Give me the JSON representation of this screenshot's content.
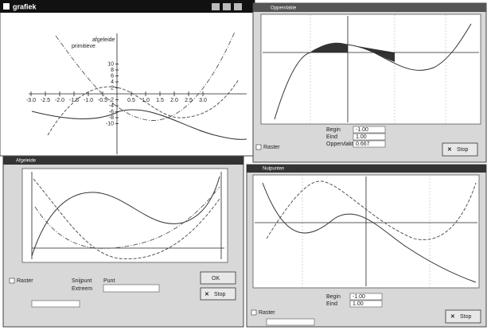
{
  "main_window": {
    "title": "grafiek",
    "legend": [
      "afgeleide",
      "primitieve"
    ],
    "x_labels": [
      "-3.0",
      "-2.5",
      "-2.0",
      "-1.5",
      "-1.0",
      "-0.5",
      "0.5",
      "1.0",
      "1.5",
      "2.0",
      "2.5",
      "3.0"
    ],
    "y_labels": [
      "10",
      "8",
      "6",
      "4",
      "2",
      "-2",
      "-4",
      "-6",
      "-8",
      "-10"
    ]
  },
  "area_window": {
    "title": "Oppervlakte",
    "fields": [
      "Begin",
      "Eind",
      "Oppervlakte"
    ],
    "values": [
      "-1.00",
      "1.00",
      "0.667"
    ],
    "checkbox": "Raster",
    "stop_button": "Stop"
  },
  "derivative_window": {
    "title": "Afgeleide",
    "checkbox": "Raster",
    "labels": [
      "Snijpunt",
      "Extreem",
      "Punt"
    ],
    "ok_button": "OK",
    "stop_button": "Stop"
  },
  "zeros_window": {
    "title": "Nulpunten",
    "fields": [
      "Begin",
      "Eind"
    ],
    "values": [
      "-1.00",
      "1.00"
    ],
    "checkbox": "Raster",
    "stop_button": "Stop"
  }
}
